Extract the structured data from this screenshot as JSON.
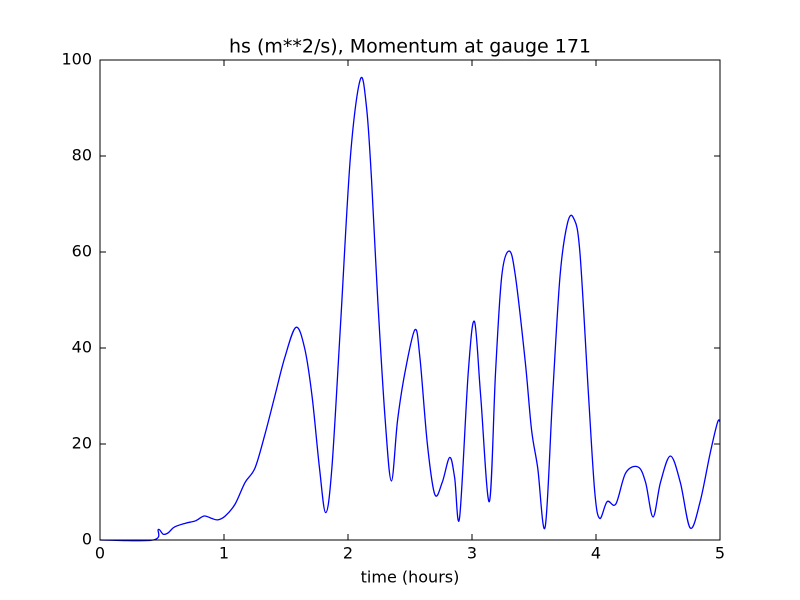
{
  "chart_data": {
    "type": "line",
    "title": "hs (m**2/s), Momentum at gauge 171",
    "x_label": "time (hours)",
    "x": [
      0,
      0.43,
      0.47,
      0.51,
      0.55,
      0.6,
      0.69,
      0.77,
      0.84,
      0.9,
      0.95,
      1.01,
      1.09,
      1.17,
      1.25,
      1.33,
      1.41,
      1.49,
      1.58,
      1.65,
      1.71,
      1.77,
      1.82,
      1.87,
      1.94,
      2.02,
      2.1,
      2.15,
      2.19,
      2.24,
      2.3,
      2.35,
      2.4,
      2.46,
      2.54,
      2.58,
      2.64,
      2.7,
      2.76,
      2.82,
      2.86,
      2.9,
      2.97,
      3.02,
      3.07,
      3.14,
      3.19,
      3.24,
      3.3,
      3.35,
      3.43,
      3.48,
      3.53,
      3.59,
      3.65,
      3.71,
      3.77,
      3.82,
      3.87,
      3.94,
      3.99,
      4.03,
      4.09,
      4.16,
      4.24,
      4.34,
      4.4,
      4.46,
      4.52,
      4.6,
      4.68,
      4.76,
      4.84,
      4.92,
      4.98,
      5
    ],
    "series": [
      {
        "name": "hs",
        "color": "#0000ff",
        "values": [
          0,
          0,
          2.2,
          1.2,
          1.5,
          2.7,
          3.5,
          4,
          5,
          4.5,
          4.2,
          5,
          7.5,
          12,
          15,
          22,
          30,
          38,
          44.3,
          40,
          30,
          15,
          5.7,
          15,
          45,
          80,
          96,
          90,
          75,
          50,
          25,
          12.3,
          25,
          35,
          43.8,
          38,
          20,
          9.5,
          12,
          17.2,
          13,
          4.7,
          35,
          45.5,
          30,
          8,
          35,
          55,
          60.2,
          55,
          37,
          23,
          15,
          2.7,
          30,
          55,
          66,
          67,
          60,
          30,
          10,
          4.5,
          8,
          7.5,
          14,
          15.2,
          12,
          4.8,
          12,
          17.5,
          12,
          2.5,
          8,
          18,
          24.5,
          24.6
        ]
      }
    ],
    "xlim": [
      0,
      5
    ],
    "xticks": [
      0,
      1,
      2,
      3,
      4,
      5
    ],
    "ylim": [
      0,
      100
    ],
    "yticks": [
      0,
      20,
      40,
      60,
      80,
      100
    ]
  }
}
